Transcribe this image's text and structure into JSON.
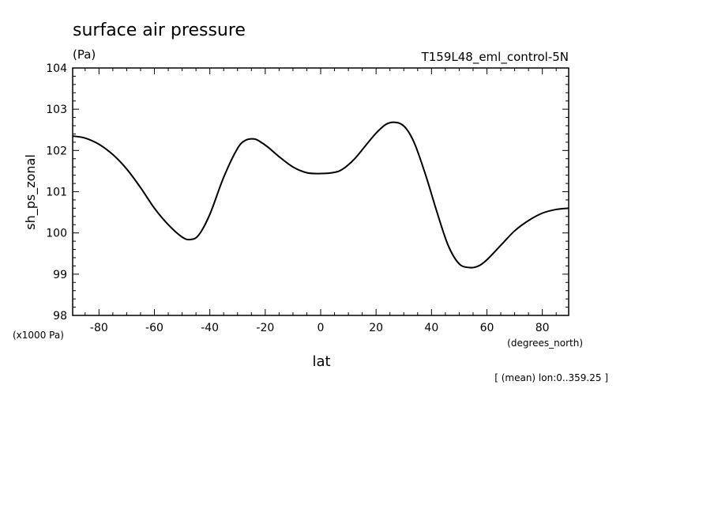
{
  "chart_data": {
    "type": "line",
    "title": "surface air pressure",
    "units": "(Pa)",
    "dataset": "T159L48_eml_control-5N",
    "ylabel": "sh_ps_zonal",
    "xlabel": "lat",
    "y_scale_note": "(x1000 Pa)",
    "x_units": "(degrees_north)",
    "footnote": "[ (mean) lon:0..359.25 ]",
    "xlim": [
      -89.5,
      89.5
    ],
    "ylim": [
      98,
      104
    ],
    "x_ticks": [
      -80,
      -60,
      -40,
      -20,
      0,
      20,
      40,
      60,
      80
    ],
    "x_tick_labels": [
      "-80",
      "-60",
      "-40",
      "-20",
      "0",
      "20",
      "40",
      "60",
      "80"
    ],
    "y_ticks": [
      98,
      99,
      100,
      101,
      102,
      103,
      104
    ],
    "y_tick_labels": [
      "98",
      "99",
      "100",
      "101",
      "102",
      "103",
      "104"
    ],
    "series": [
      {
        "x": [
          -89.5,
          -85,
          -80,
          -75,
          -70,
          -65,
          -60,
          -55,
          -50,
          -47,
          -44,
          -40,
          -35,
          -30,
          -27,
          -24,
          -22,
          -19,
          -15,
          -10,
          -5,
          0,
          5,
          8,
          12,
          16,
          20,
          24,
          28,
          31,
          34,
          38,
          42,
          46,
          50,
          54,
          57,
          60,
          65,
          70,
          75,
          80,
          85,
          89.5
        ],
        "y": [
          102.35,
          102.3,
          102.15,
          101.9,
          101.55,
          101.1,
          100.6,
          100.2,
          99.9,
          99.84,
          99.95,
          100.45,
          101.35,
          102.05,
          102.25,
          102.28,
          102.22,
          102.08,
          101.85,
          101.6,
          101.46,
          101.44,
          101.47,
          101.55,
          101.78,
          102.1,
          102.42,
          102.65,
          102.67,
          102.52,
          102.15,
          101.38,
          100.5,
          99.7,
          99.25,
          99.16,
          99.2,
          99.35,
          99.7,
          100.05,
          100.3,
          100.48,
          100.57,
          100.6
        ]
      }
    ]
  }
}
